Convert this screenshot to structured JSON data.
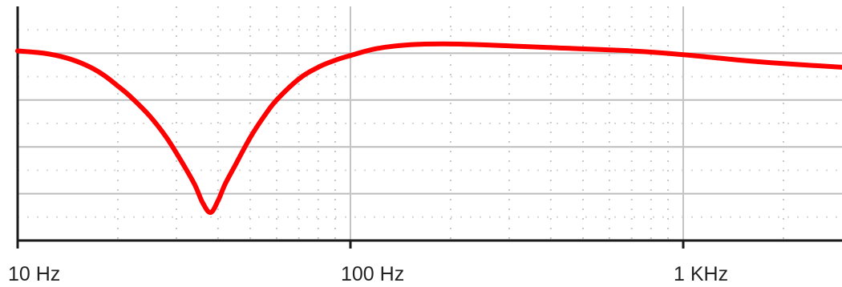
{
  "chart_data": {
    "type": "line",
    "title": "",
    "xlabel": "",
    "ylabel": "",
    "x_scale": "log",
    "xlim": [
      10,
      3000
    ],
    "ylim": [
      0,
      5
    ],
    "grid": true,
    "x_ticks": [
      {
        "value": 10,
        "label": "10 Hz"
      },
      {
        "value": 100,
        "label": "100 Hz"
      },
      {
        "value": 1000,
        "label": "1 KHz"
      }
    ],
    "y_gridlines": [
      1,
      2,
      3,
      4
    ],
    "series": [
      {
        "color": "#ff0000",
        "x": [
          10,
          12,
          14,
          16,
          18,
          20,
          22,
          25,
          28,
          31,
          34,
          36,
          38,
          40,
          42,
          45,
          50,
          55,
          60,
          70,
          80,
          90,
          100,
          120,
          150,
          190,
          250,
          400,
          700,
          1000,
          1500,
          2000,
          3000
        ],
        "y": [
          4.05,
          4.0,
          3.9,
          3.75,
          3.55,
          3.3,
          3.05,
          2.65,
          2.2,
          1.7,
          1.2,
          0.8,
          0.6,
          0.85,
          1.2,
          1.6,
          2.2,
          2.65,
          3.0,
          3.45,
          3.7,
          3.85,
          3.95,
          4.1,
          4.18,
          4.2,
          4.18,
          4.12,
          4.05,
          3.97,
          3.85,
          3.78,
          3.7
        ]
      }
    ]
  }
}
